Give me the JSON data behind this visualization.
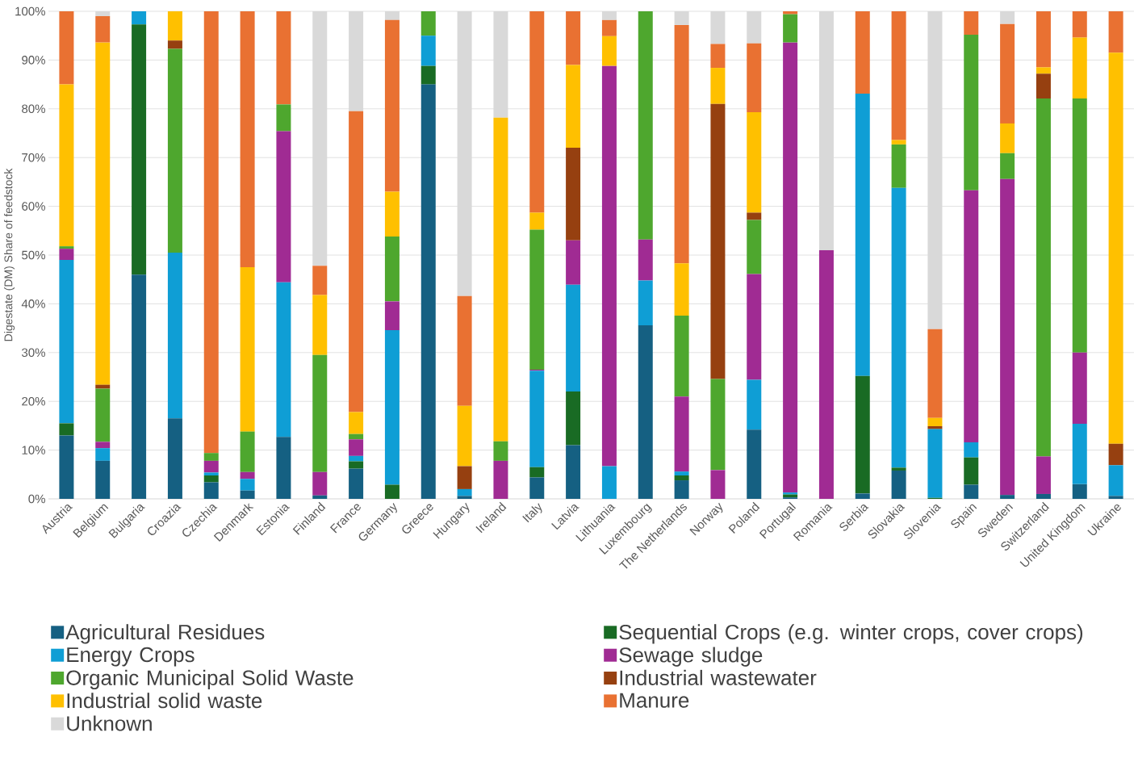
{
  "chart_data": {
    "type": "bar",
    "stacked": true,
    "ylabel": "Digestate (DM) Share of feedstock",
    "categories": [
      "Austria",
      "Belgium",
      "Bulgaria",
      "Croazia",
      "Czechia",
      "Denmark",
      "Estonia",
      "Finland",
      "France",
      "Germany",
      "Greece",
      "Hungary",
      "Ireland",
      "Italy",
      "Latvia",
      "Lithuania",
      "Luxembourg",
      "The Netherlands",
      "Norway",
      "Poland",
      "Portugal",
      "Romania",
      "Serbia",
      "Slovakia",
      "Slovenia",
      "Spain",
      "Sweden",
      "Switzerland",
      "United Kingdom",
      "Ukraine"
    ],
    "ylim": [
      0,
      100
    ],
    "yticks": [
      {
        "value": 0,
        "label": "0%"
      },
      {
        "value": 10,
        "label": "10%"
      },
      {
        "value": 20,
        "label": "20%"
      },
      {
        "value": 30,
        "label": "30%"
      },
      {
        "value": 40,
        "label": "40%"
      },
      {
        "value": 50,
        "label": "50%"
      },
      {
        "value": 60,
        "label": "60%"
      },
      {
        "value": 70,
        "label": "70%"
      },
      {
        "value": 80,
        "label": "80%"
      },
      {
        "value": 90,
        "label": "90%"
      },
      {
        "value": 100,
        "label": "100%"
      }
    ],
    "grid": "y",
    "legend": "bottom",
    "series": [
      {
        "name": "Agricultural Residues",
        "color": "#156082",
        "values": [
          13,
          7.8,
          46,
          16.5,
          3.4,
          1.7,
          12.7,
          0.7,
          6.2,
          0,
          85,
          0.6,
          0,
          4.4,
          11,
          0,
          35.6,
          3.8,
          0,
          14.2,
          0.3,
          0,
          1.1,
          5.8,
          0,
          2.9,
          0.8,
          1,
          3,
          0.6
        ]
      },
      {
        "name": "Sequential Crops (e.g. winter crops, cover crops)",
        "color": "#196b24",
        "values": [
          2.5,
          0,
          51.3,
          0,
          1.4,
          0,
          0,
          0,
          1.5,
          2.9,
          3.8,
          0,
          0,
          2.1,
          11,
          0,
          0,
          1,
          0,
          0,
          0.6,
          0,
          24.1,
          0.6,
          0.2,
          5.6,
          0,
          0,
          0,
          0
        ]
      },
      {
        "name": "Energy Crops",
        "color": "#0f9ed5",
        "values": [
          33.5,
          2.6,
          2.7,
          34,
          0.6,
          2.4,
          31.7,
          0,
          1.1,
          31.7,
          6.2,
          1.4,
          0,
          19.8,
          21.9,
          6.7,
          9.2,
          0.8,
          0,
          10.2,
          0.4,
          0,
          57.9,
          57.4,
          14.1,
          3.1,
          0,
          0,
          12.4,
          6.3
        ]
      },
      {
        "name": "Sewage sludge",
        "color": "#a02b93",
        "values": [
          2.3,
          1.3,
          0,
          0,
          2.4,
          1.4,
          31,
          4.8,
          3.4,
          5.9,
          0,
          0,
          7.8,
          0.2,
          9.1,
          82.1,
          8.4,
          15.4,
          5.9,
          21.7,
          92.3,
          51,
          0,
          0,
          0,
          51.7,
          64.8,
          7.7,
          14.6,
          0
        ]
      },
      {
        "name": "Organic Municipal Solid Waste",
        "color": "#4ea72e",
        "values": [
          0.5,
          10.9,
          0,
          41.8,
          1.6,
          8.3,
          5.5,
          24,
          1.1,
          13.3,
          5,
          0,
          4,
          28.7,
          0,
          0,
          46.8,
          16.6,
          18.7,
          11.1,
          5.8,
          0,
          0,
          8.9,
          0,
          31.9,
          5.3,
          73.4,
          52.1,
          0
        ]
      },
      {
        "name": "Industrial wastewater",
        "color": "#964010",
        "values": [
          0,
          0.8,
          0,
          1.7,
          0,
          0,
          0,
          0,
          0,
          0,
          0,
          4.7,
          0,
          0,
          19,
          0,
          0,
          0,
          56.4,
          1.5,
          0,
          0,
          0,
          0,
          0.6,
          0,
          0,
          5.1,
          0,
          4.4
        ]
      },
      {
        "name": "Industrial solid waste",
        "color": "#ffc000",
        "values": [
          33.2,
          70.2,
          0,
          6,
          0,
          33.7,
          0,
          12.3,
          4.5,
          9.2,
          0,
          12.4,
          66.4,
          3.5,
          17,
          6.1,
          0,
          10.7,
          7.4,
          20.6,
          0,
          0,
          0,
          0.9,
          1.7,
          0,
          6.1,
          1.3,
          12.5,
          80.2
        ]
      },
      {
        "name": "Manure",
        "color": "#e97132",
        "values": [
          15,
          5.4,
          0,
          0,
          90.6,
          52.5,
          19.1,
          6,
          61.7,
          35.2,
          0,
          22.5,
          0,
          41.3,
          11,
          3.3,
          0,
          48.9,
          4.9,
          14.1,
          0.6,
          0,
          16.9,
          26.4,
          18.2,
          4.8,
          20.4,
          11.5,
          5.4,
          8.5
        ]
      },
      {
        "name": "Unknown",
        "color": "#d9d9d9",
        "values": [
          0,
          1,
          0,
          0,
          0,
          0,
          0,
          52.2,
          20.5,
          1.8,
          0,
          58.4,
          21.8,
          0,
          0,
          1.8,
          0,
          2.8,
          6.7,
          6.6,
          0,
          49,
          0,
          0,
          65.2,
          0,
          2.6,
          0,
          0,
          0
        ]
      }
    ]
  }
}
